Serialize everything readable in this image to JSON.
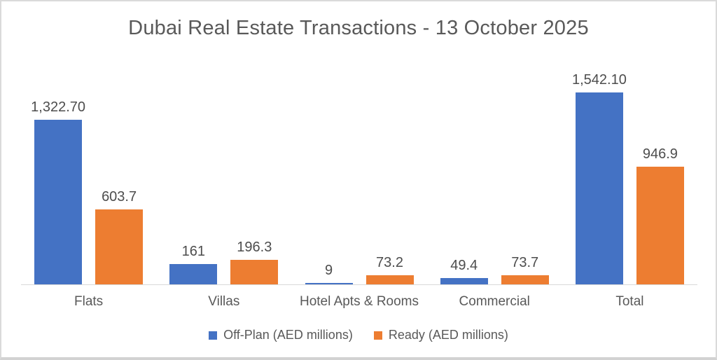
{
  "frame": {
    "background": "#ffffff",
    "border_color": "#dadada"
  },
  "chart_data": {
    "type": "bar",
    "title": "Dubai Real Estate Transactions - 13 October 2025",
    "categories": [
      "Flats",
      "Villas",
      "Hotel Apts & Rooms",
      "Commercial",
      "Total"
    ],
    "series": [
      {
        "name": "Off-Plan (AED millions)",
        "color": "#4472C4",
        "values": [
          1322.7,
          161,
          9,
          49.4,
          1542.1
        ],
        "value_labels": [
          "1,322.70",
          "161",
          "9",
          "49.4",
          "1,542.10"
        ]
      },
      {
        "name": "Ready (AED millions)",
        "color": "#ED7D31",
        "values": [
          603.7,
          196.3,
          73.2,
          73.7,
          946.9
        ],
        "value_labels": [
          "603.7",
          "196.3",
          "73.2",
          "73.7",
          "946.9"
        ]
      }
    ],
    "xlabel": "",
    "ylabel": "",
    "ylim": [
      0,
      1800
    ],
    "grid": false,
    "legend_position": "bottom",
    "axis_line_color": "#d9d9d9",
    "text_color": "#595959"
  }
}
